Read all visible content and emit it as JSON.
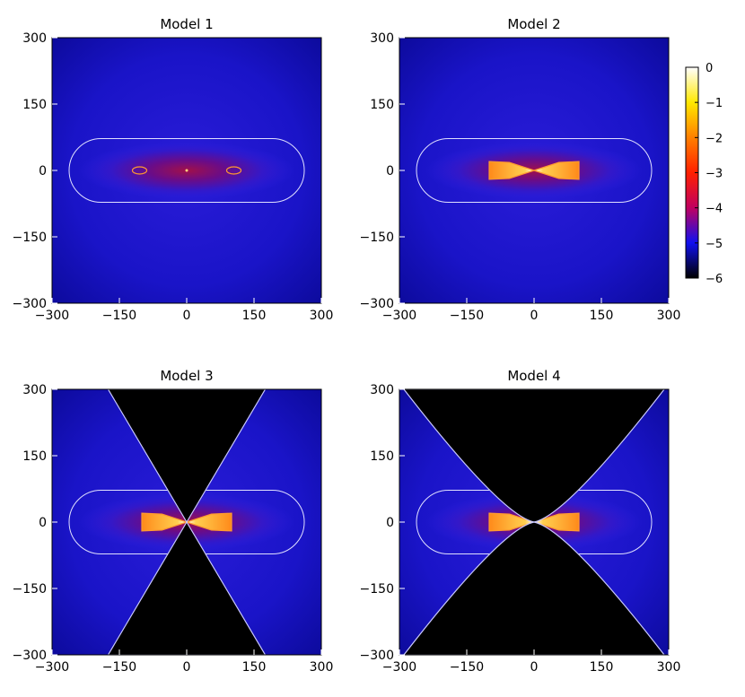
{
  "chart_data": [
    {
      "type": "heatmap",
      "title": "Model 1",
      "xlim": [
        -300,
        300
      ],
      "ylim": [
        -300,
        300
      ],
      "x_ticks": [
        -300,
        -150,
        0,
        150,
        300
      ],
      "y_ticks": [
        -300,
        -150,
        0,
        150,
        300
      ],
      "x_tick_labels": [
        "−300",
        "−150",
        "0",
        "150",
        "300"
      ],
      "y_tick_labels": [
        "−300",
        "−150",
        "0",
        "150",
        "300"
      ],
      "torus_contour": {
        "x_extent": 262,
        "z_extent": 72
      },
      "inner_hotspots": [
        {
          "x": -105,
          "z": 0
        },
        {
          "x": 105,
          "z": 0
        }
      ],
      "bicone": null
    },
    {
      "type": "heatmap",
      "title": "Model 2",
      "xlim": [
        -300,
        300
      ],
      "ylim": [
        -300,
        300
      ],
      "x_ticks": [
        -300,
        -150,
        0,
        150,
        300
      ],
      "y_ticks": [
        -300,
        -150,
        0,
        150,
        300
      ],
      "x_tick_labels": [
        "−300",
        "−150",
        "0",
        "150",
        "300"
      ],
      "y_tick_labels": [
        "−300",
        "−150",
        "0",
        "150",
        "300"
      ],
      "torus_contour": {
        "x_extent": 262,
        "z_extent": 72
      },
      "bowtie": {
        "x_extent": 100,
        "z_extent": 20
      },
      "bicone": null
    },
    {
      "type": "heatmap",
      "title": "Model 3",
      "xlim": [
        -300,
        300
      ],
      "ylim": [
        -300,
        300
      ],
      "x_ticks": [
        -300,
        -150,
        0,
        150,
        300
      ],
      "y_ticks": [
        -300,
        -150,
        0,
        150,
        300
      ],
      "x_tick_labels": [
        "−300",
        "−150",
        "0",
        "150",
        "300"
      ],
      "y_tick_labels": [
        "−300",
        "−150",
        "0",
        "150",
        "300"
      ],
      "torus_contour": {
        "x_extent": 262,
        "z_extent": 72
      },
      "bowtie": {
        "x_extent": 100,
        "z_extent": 20
      },
      "bicone": {
        "x_at_edge": 175,
        "curvature": "conical"
      }
    },
    {
      "type": "heatmap",
      "title": "Model 4",
      "xlim": [
        -300,
        300
      ],
      "ylim": [
        -300,
        300
      ],
      "x_ticks": [
        -300,
        -150,
        0,
        150,
        300
      ],
      "y_ticks": [
        -300,
        -150,
        0,
        150,
        300
      ],
      "x_tick_labels": [
        "−300",
        "−150",
        "0",
        "150",
        "300"
      ],
      "y_tick_labels": [
        "−300",
        "−150",
        "0",
        "150",
        "300"
      ],
      "torus_contour": {
        "x_extent": 262,
        "z_extent": 72
      },
      "bowtie": {
        "x_extent": 100,
        "z_extent": 20
      },
      "bicone": {
        "x_at_edge": 290,
        "curvature": "parabolic"
      }
    }
  ],
  "colorbar": {
    "range": [
      -6,
      0
    ],
    "ticks": [
      0,
      -1,
      -2,
      -3,
      -4,
      -5,
      -6
    ],
    "tick_labels": [
      "0",
      "−1",
      "−2",
      "−3",
      "−4",
      "−5",
      "−6"
    ],
    "stops": [
      {
        "value": -6,
        "color": "#000000"
      },
      {
        "value": -5,
        "color": "#1010f0"
      },
      {
        "value": -4,
        "color": "#c00060"
      },
      {
        "value": -3,
        "color": "#ff2000"
      },
      {
        "value": -2,
        "color": "#ff8000"
      },
      {
        "value": -1,
        "color": "#ffe800"
      },
      {
        "value": 0,
        "color": "#ffffff"
      }
    ]
  },
  "colors": {
    "background_blue": "#1a14c8",
    "edge_blue": "#0c0a9a",
    "contour_white": "#e0e0ff",
    "contour_hot": "#ff9a30",
    "cone_black": "#000000"
  }
}
